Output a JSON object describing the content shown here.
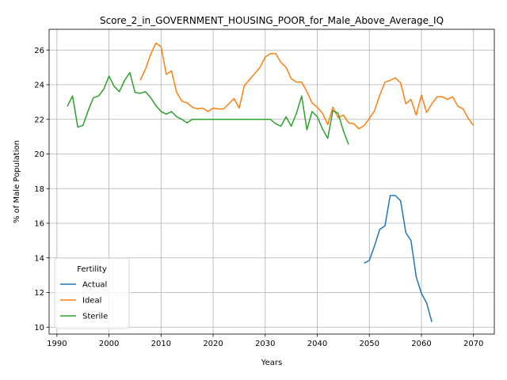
{
  "chart_data": {
    "type": "line",
    "title": "Score_2_in_GOVERNMENT_HOUSING_POOR_for_Male_Above_Average_IQ",
    "xlabel": "Years",
    "ylabel": "% of Male Population",
    "xlim": [
      1988.5,
      2074
    ],
    "ylim": [
      9.6,
      27.2
    ],
    "xticks": [
      1990,
      2000,
      2010,
      2020,
      2030,
      2040,
      2050,
      2060,
      2070
    ],
    "yticks": [
      10,
      12,
      14,
      16,
      18,
      20,
      22,
      24,
      26
    ],
    "grid": true,
    "legend": {
      "title": "Fertility",
      "position": "lower-left"
    },
    "series": [
      {
        "name": "Actual",
        "color": "#1f77b4",
        "points": [
          [
            2049,
            13.7
          ],
          [
            2050,
            13.85
          ],
          [
            2051,
            14.7
          ],
          [
            2052,
            15.65
          ],
          [
            2053,
            15.85
          ],
          [
            2054,
            17.6
          ],
          [
            2055,
            17.6
          ],
          [
            2056,
            17.3
          ],
          [
            2057,
            15.45
          ],
          [
            2058,
            15.0
          ],
          [
            2059,
            12.9
          ],
          [
            2060,
            11.95
          ],
          [
            2061,
            11.4
          ],
          [
            2062,
            10.3
          ]
        ]
      },
      {
        "name": "Ideal",
        "color": "#ff7f0e",
        "points": [
          [
            2006,
            24.25
          ],
          [
            2007,
            24.9
          ],
          [
            2008,
            25.75
          ],
          [
            2009,
            26.4
          ],
          [
            2010,
            26.2
          ],
          [
            2011,
            24.6
          ],
          [
            2012,
            24.8
          ],
          [
            2013,
            23.55
          ],
          [
            2014,
            23.05
          ],
          [
            2015,
            22.95
          ],
          [
            2016,
            22.7
          ],
          [
            2017,
            22.6
          ],
          [
            2018,
            22.65
          ],
          [
            2019,
            22.45
          ],
          [
            2020,
            22.65
          ],
          [
            2021,
            22.6
          ],
          [
            2022,
            22.6
          ],
          [
            2023,
            22.9
          ],
          [
            2024,
            23.2
          ],
          [
            2025,
            22.65
          ],
          [
            2026,
            23.95
          ],
          [
            2027,
            24.3
          ],
          [
            2028,
            24.65
          ],
          [
            2029,
            25.0
          ],
          [
            2030,
            25.6
          ],
          [
            2031,
            25.8
          ],
          [
            2032,
            25.8
          ],
          [
            2033,
            25.3
          ],
          [
            2034,
            25.0
          ],
          [
            2035,
            24.35
          ],
          [
            2036,
            24.15
          ],
          [
            2037,
            24.15
          ],
          [
            2038,
            23.6
          ],
          [
            2039,
            22.95
          ],
          [
            2040,
            22.7
          ],
          [
            2041,
            22.35
          ],
          [
            2042,
            21.7
          ],
          [
            2043,
            22.7
          ],
          [
            2044,
            22.1
          ],
          [
            2045,
            22.25
          ],
          [
            2046,
            21.8
          ],
          [
            2047,
            21.75
          ],
          [
            2048,
            21.45
          ],
          [
            2049,
            21.65
          ],
          [
            2050,
            22.05
          ],
          [
            2051,
            22.5
          ],
          [
            2052,
            23.4
          ],
          [
            2053,
            24.15
          ],
          [
            2054,
            24.25
          ],
          [
            2055,
            24.4
          ],
          [
            2056,
            24.1
          ],
          [
            2057,
            22.9
          ],
          [
            2058,
            23.15
          ],
          [
            2059,
            22.25
          ],
          [
            2060,
            23.4
          ],
          [
            2061,
            22.4
          ],
          [
            2062,
            22.9
          ],
          [
            2063,
            23.3
          ],
          [
            2064,
            23.3
          ],
          [
            2065,
            23.15
          ],
          [
            2066,
            23.3
          ],
          [
            2067,
            22.75
          ],
          [
            2068,
            22.6
          ],
          [
            2069,
            22.05
          ],
          [
            2070,
            21.65
          ]
        ]
      },
      {
        "name": "Sterile",
        "color": "#2ca02c",
        "points": [
          [
            1992,
            22.75
          ],
          [
            1993,
            23.35
          ],
          [
            1994,
            21.55
          ],
          [
            1995,
            21.65
          ],
          [
            1996,
            22.5
          ],
          [
            1997,
            23.25
          ],
          [
            1998,
            23.35
          ],
          [
            1999,
            23.75
          ],
          [
            2000,
            24.5
          ],
          [
            2001,
            23.9
          ],
          [
            2002,
            23.6
          ],
          [
            2003,
            24.25
          ],
          [
            2004,
            24.7
          ],
          [
            2005,
            23.55
          ],
          [
            2006,
            23.5
          ],
          [
            2007,
            23.6
          ],
          [
            2008,
            23.25
          ],
          [
            2009,
            22.8
          ],
          [
            2010,
            22.45
          ],
          [
            2011,
            22.3
          ],
          [
            2012,
            22.45
          ],
          [
            2013,
            22.15
          ],
          [
            2014,
            22.0
          ],
          [
            2015,
            21.8
          ],
          [
            2016,
            22.0
          ],
          [
            2017,
            22.0
          ],
          [
            2018,
            22.0
          ],
          [
            2019,
            22.0
          ],
          [
            2020,
            22.0
          ],
          [
            2021,
            22.0
          ],
          [
            2022,
            22.0
          ],
          [
            2023,
            22.0
          ],
          [
            2024,
            22.0
          ],
          [
            2025,
            22.0
          ],
          [
            2026,
            22.0
          ],
          [
            2027,
            22.0
          ],
          [
            2028,
            22.0
          ],
          [
            2029,
            22.0
          ],
          [
            2030,
            22.0
          ],
          [
            2031,
            22.0
          ],
          [
            2032,
            21.75
          ],
          [
            2033,
            21.6
          ],
          [
            2034,
            22.15
          ],
          [
            2035,
            21.6
          ],
          [
            2036,
            22.35
          ],
          [
            2037,
            23.35
          ],
          [
            2038,
            21.4
          ],
          [
            2039,
            22.45
          ],
          [
            2040,
            22.15
          ],
          [
            2041,
            21.45
          ],
          [
            2042,
            20.9
          ],
          [
            2043,
            22.5
          ],
          [
            2044,
            22.35
          ],
          [
            2045,
            21.35
          ],
          [
            2046,
            20.55
          ]
        ]
      }
    ]
  }
}
